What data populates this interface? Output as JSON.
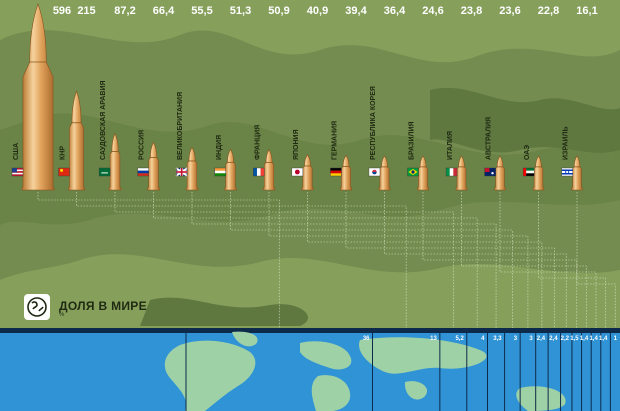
{
  "legend": {
    "title": "ДОЛЯ В МИРЕ",
    "unit": "%",
    "icon": "globe-icon"
  },
  "colors": {
    "camo_base": "#748c4f",
    "camo_light": "#86a05c",
    "camo_dark": "#5f7840",
    "bullet_light": "#f3c78a",
    "bullet_mid": "#e0a25b",
    "bullet_dark": "#b8752e",
    "ocean": "#2f93d6",
    "land": "#9fd1a6",
    "top_bar": "#0e2a4a"
  },
  "chart_data": {
    "type": "bar",
    "title": "",
    "xlabel": "",
    "ylabel": "",
    "categories": [
      "США",
      "КНР",
      "Саудовская Аравия",
      "Россия",
      "Великобритания",
      "Индия",
      "Франция",
      "Япония",
      "Германия",
      "Республика Корея",
      "Бразилия",
      "Италия",
      "Австралия",
      "ОАЭ",
      "Израиль"
    ],
    "values": [
      596,
      215,
      87.2,
      66.4,
      55.5,
      51.3,
      50.9,
      40.9,
      39.4,
      36.4,
      24.6,
      23.8,
      23.6,
      22.8,
      16.1
    ],
    "value_labels": [
      "596",
      "215",
      "87,2",
      "66,4",
      "55,5",
      "51,3",
      "50,9",
      "40,9",
      "39,4",
      "36,4",
      "24,6",
      "23,8",
      "23,6",
      "22,8",
      "16,1"
    ],
    "share_labels": [
      "36",
      "13",
      "5,2",
      "4",
      "3,3",
      "3",
      "3",
      "2,4",
      "2,4",
      "2,2",
      "1,5",
      "1,4",
      "1,4",
      "1,4",
      "1"
    ],
    "flags": [
      "us",
      "cn",
      "sa",
      "ru",
      "gb",
      "in",
      "fr",
      "jp",
      "de",
      "kr",
      "br",
      "it",
      "au",
      "ae",
      "il"
    ]
  }
}
